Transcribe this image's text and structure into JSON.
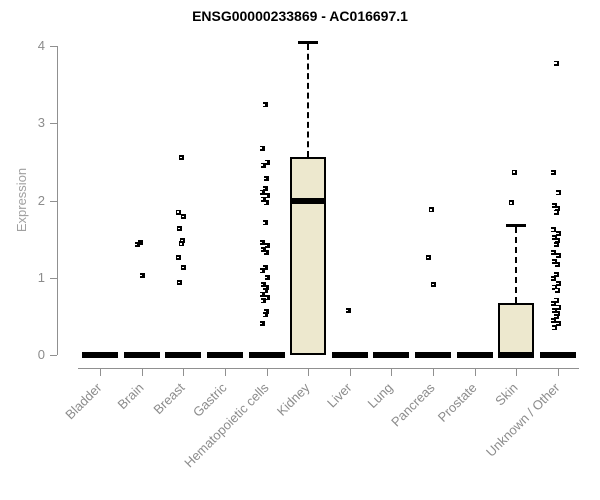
{
  "title": "ENSG00000233869 - AC016697.1",
  "colors": {
    "axis": "#909090",
    "tick_label": "#8C8C8C",
    "y_axis_title": "#A0A0A0",
    "title": "#000000",
    "box_fill": "#EDE8CE",
    "box_border": "#000000",
    "point": "#000000"
  },
  "chart_data": {
    "type": "boxplot",
    "title": "ENSG00000233869 - AC016697.1",
    "xlabel": "",
    "ylabel": "Expression",
    "ylim": [
      0,
      4
    ],
    "yticks": [
      0,
      1,
      2,
      3,
      4
    ],
    "grid": false,
    "legend": false,
    "box_fill_color": "#EDE8CE",
    "categories": [
      "Bladder",
      "Brain",
      "Breast",
      "Gastric",
      "Hematopoietic cells",
      "Kidney",
      "Liver",
      "Lung",
      "Pancreas",
      "Prostate",
      "Skin",
      "Unknown / Other"
    ],
    "series": [
      {
        "category": "Bladder",
        "q1": 0,
        "median": 0,
        "q3": 0,
        "whisker_low": 0,
        "whisker_high": 0,
        "outliers": []
      },
      {
        "category": "Brain",
        "q1": 0,
        "median": 0,
        "q3": 0,
        "whisker_low": 0,
        "whisker_high": 0,
        "outliers": [
          1.46,
          1.43,
          1.03
        ]
      },
      {
        "category": "Breast",
        "q1": 0,
        "median": 0,
        "q3": 0,
        "whisker_low": 0,
        "whisker_high": 0,
        "outliers": [
          2.56,
          1.85,
          1.79,
          1.64,
          1.48,
          1.44,
          1.26,
          1.13,
          0.94
        ]
      },
      {
        "category": "Gastric",
        "q1": 0,
        "median": 0,
        "q3": 0,
        "whisker_low": 0,
        "whisker_high": 0,
        "outliers": []
      },
      {
        "category": "Hematopoietic cells",
        "q1": 0,
        "median": 0,
        "q3": 0,
        "whisker_low": 0,
        "whisker_high": 0,
        "outliers": [
          3.24,
          2.68,
          2.5,
          2.46,
          2.29,
          2.16,
          2.11,
          2.06,
          2.02,
          1.97,
          1.71,
          1.46,
          1.42,
          1.37,
          1.33,
          1.13,
          1.09,
          1.0,
          0.91,
          0.87,
          0.83,
          0.79,
          0.74,
          0.7,
          0.56,
          0.52,
          0.41
        ]
      },
      {
        "category": "Kidney",
        "q1": 0,
        "median": 2.0,
        "q3": 2.57,
        "whisker_low": 0,
        "whisker_high": 4.06,
        "outliers": []
      },
      {
        "category": "Liver",
        "q1": 0,
        "median": 0,
        "q3": 0,
        "whisker_low": 0,
        "whisker_high": 0,
        "outliers": [
          0.58
        ]
      },
      {
        "category": "Lung",
        "q1": 0,
        "median": 0,
        "q3": 0,
        "whisker_low": 0,
        "whisker_high": 0,
        "outliers": []
      },
      {
        "category": "Pancreas",
        "q1": 0,
        "median": 0,
        "q3": 0,
        "whisker_low": 0,
        "whisker_high": 0,
        "outliers": [
          1.88,
          1.26,
          0.91
        ]
      },
      {
        "category": "Prostate",
        "q1": 0,
        "median": 0,
        "q3": 0,
        "whisker_low": 0,
        "whisker_high": 0,
        "outliers": []
      },
      {
        "category": "Skin",
        "q1": 0,
        "median": 0,
        "q3": 0.67,
        "whisker_low": 0,
        "whisker_high": 1.68,
        "outliers": [
          2.37,
          1.97
        ]
      },
      {
        "category": "Unknown / Other",
        "q1": 0,
        "median": 0,
        "q3": 0,
        "whisker_low": 0,
        "whisker_high": 0,
        "outliers": [
          3.78,
          2.36,
          2.1,
          1.94,
          1.9,
          1.85,
          1.62,
          1.57,
          1.52,
          1.48,
          1.43,
          1.33,
          1.29,
          1.21,
          1.17,
          1.04,
          0.99,
          0.93,
          0.88,
          0.84,
          0.71,
          0.67,
          0.62,
          0.58,
          0.54,
          0.5,
          0.45,
          0.41,
          0.35
        ]
      }
    ]
  }
}
